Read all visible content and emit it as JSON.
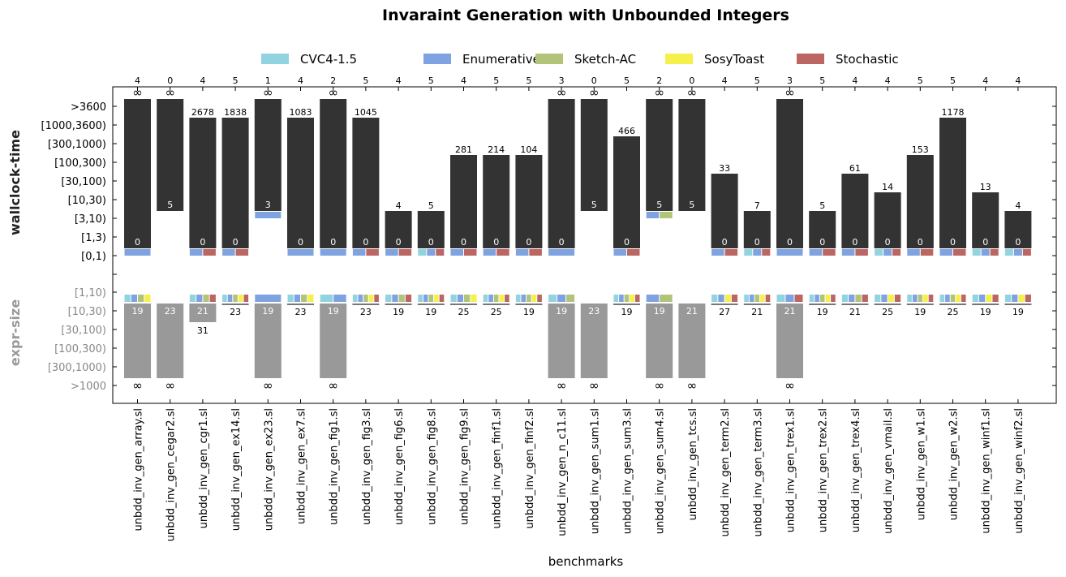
{
  "chart_data": {
    "type": "bar",
    "title": "Invaraint Generation with Unbounded Integers",
    "xlabel": "benchmarks",
    "ylabel_top": "wallclock-time",
    "ylabel_bottom": "expr-size",
    "time_ticks": [
      ">3600",
      "[1000,3600)",
      "[300,1000)",
      "[100,300)",
      "[30,100)",
      "[10,30)",
      "[3,10)",
      "[1,3)",
      "[0,1)"
    ],
    "size_ticks": [
      "[1,10)",
      "[10,30)",
      "[30,100)",
      "[100,300)",
      "[300,1000)",
      ">1000"
    ],
    "legend": [
      {
        "name": "CVC4-1.5",
        "color": "#92d3e0"
      },
      {
        "name": "Enumerative",
        "color": "#7ea3e0"
      },
      {
        "name": "Sketch-AC",
        "color": "#b2c479"
      },
      {
        "name": "SosyToast",
        "color": "#f5f04c"
      },
      {
        "name": "Stochastic",
        "color": "#bb6662"
      }
    ],
    "colors": {
      "time_bar": "#333333",
      "size_bar": "#999999"
    },
    "benchmarks": [
      {
        "name": "unbdd_inv_gen_array.sl",
        "solved": "4",
        "max_level": 8,
        "max_label": "∞",
        "min_level": 0,
        "min_label": "0",
        "time_solvers": [
          "Enumerative"
        ],
        "size_solvers": [
          "CVC4-1.5",
          "Enumerative",
          "Sketch-AC",
          "SosyToast"
        ],
        "size_min_level": 1,
        "size_min_label": "19",
        "size_max_level": 5,
        "size_max_label": "∞"
      },
      {
        "name": "unbdd_inv_gen_cegar2.sl",
        "solved": "0",
        "max_level": 8,
        "max_label": "∞",
        "min_level": 2,
        "min_label": "5",
        "time_solvers": [],
        "size_solvers": [],
        "size_min_level": 1,
        "size_min_label": "23",
        "size_max_level": 5,
        "size_max_label": "∞"
      },
      {
        "name": "unbdd_inv_gen_cgr1.sl",
        "solved": "4",
        "max_level": 7,
        "max_label": "2678",
        "min_level": 0,
        "min_label": "0",
        "time_solvers": [
          "Enumerative",
          "Stochastic"
        ],
        "size_solvers": [
          "CVC4-1.5",
          "Enumerative",
          "Sketch-AC",
          "Stochastic"
        ],
        "size_min_level": 1,
        "size_min_label": "21",
        "size_max_level": 2,
        "size_max_label": "31"
      },
      {
        "name": "unbdd_inv_gen_ex14.sl",
        "solved": "5",
        "max_level": 7,
        "max_label": "1838",
        "min_level": 0,
        "min_label": "0",
        "time_solvers": [
          "Enumerative",
          "Stochastic"
        ],
        "size_solvers": [
          "CVC4-1.5",
          "Enumerative",
          "Sketch-AC",
          "SosyToast",
          "Stochastic"
        ],
        "size_min_level": 1,
        "size_min_label": "",
        "size_max_level": 1,
        "size_max_label": "23"
      },
      {
        "name": "unbdd_inv_gen_ex23.sl",
        "solved": "1",
        "max_level": 8,
        "max_label": "∞",
        "min_level": 2,
        "min_label": "3",
        "time_solvers": [
          "Enumerative"
        ],
        "size_solvers": [
          "Enumerative"
        ],
        "size_min_level": 1,
        "size_min_label": "19",
        "size_max_level": 5,
        "size_max_label": "∞"
      },
      {
        "name": "unbdd_inv_gen_ex7.sl",
        "solved": "4",
        "max_level": 7,
        "max_label": "1083",
        "min_level": 0,
        "min_label": "0",
        "time_solvers": [
          "Enumerative"
        ],
        "size_solvers": [
          "CVC4-1.5",
          "Enumerative",
          "Sketch-AC",
          "SosyToast"
        ],
        "size_min_level": 1,
        "size_min_label": "",
        "size_max_level": 1,
        "size_max_label": "23"
      },
      {
        "name": "unbdd_inv_gen_fig1.sl",
        "solved": "2",
        "max_level": 8,
        "max_label": "∞",
        "min_level": 0,
        "min_label": "0",
        "time_solvers": [
          "Enumerative"
        ],
        "size_solvers": [
          "CVC4-1.5",
          "Enumerative"
        ],
        "size_min_level": 1,
        "size_min_label": "19",
        "size_max_level": 5,
        "size_max_label": "∞"
      },
      {
        "name": "unbdd_inv_gen_fig3.sl",
        "solved": "5",
        "max_level": 7,
        "max_label": "1045",
        "min_level": 0,
        "min_label": "0",
        "time_solvers": [
          "Enumerative",
          "Stochastic"
        ],
        "size_solvers": [
          "CVC4-1.5",
          "Enumerative",
          "Sketch-AC",
          "SosyToast",
          "Stochastic"
        ],
        "size_min_level": 1,
        "size_min_label": "",
        "size_max_level": 1,
        "size_max_label": "23"
      },
      {
        "name": "unbdd_inv_gen_fig6.sl",
        "solved": "4",
        "max_level": 2,
        "max_label": "4",
        "min_level": 0,
        "min_label": "0",
        "time_solvers": [
          "Enumerative",
          "Stochastic"
        ],
        "size_solvers": [
          "CVC4-1.5",
          "Enumerative",
          "Sketch-AC",
          "Stochastic"
        ],
        "size_min_level": 1,
        "size_min_label": "",
        "size_max_level": 1,
        "size_max_label": "19"
      },
      {
        "name": "unbdd_inv_gen_fig8.sl",
        "solved": "5",
        "max_level": 2,
        "max_label": "5",
        "min_level": 0,
        "min_label": "0",
        "time_solvers": [
          "CVC4-1.5",
          "Enumerative",
          "Stochastic"
        ],
        "size_solvers": [
          "CVC4-1.5",
          "Enumerative",
          "Sketch-AC",
          "SosyToast",
          "Stochastic"
        ],
        "size_min_level": 1,
        "size_min_label": "",
        "size_max_level": 1,
        "size_max_label": "19"
      },
      {
        "name": "unbdd_inv_gen_fig9.sl",
        "solved": "4",
        "max_level": 5,
        "max_label": "281",
        "min_level": 0,
        "min_label": "0",
        "time_solvers": [
          "Enumerative",
          "Stochastic"
        ],
        "size_solvers": [
          "CVC4-1.5",
          "Enumerative",
          "Sketch-AC",
          "SosyToast"
        ],
        "size_min_level": 1,
        "size_min_label": "",
        "size_max_level": 1,
        "size_max_label": "25"
      },
      {
        "name": "unbdd_inv_gen_finf1.sl",
        "solved": "5",
        "max_level": 5,
        "max_label": "214",
        "min_level": 0,
        "min_label": "0",
        "time_solvers": [
          "Enumerative",
          "Stochastic"
        ],
        "size_solvers": [
          "CVC4-1.5",
          "Enumerative",
          "Sketch-AC",
          "SosyToast",
          "Stochastic"
        ],
        "size_min_level": 1,
        "size_min_label": "",
        "size_max_level": 1,
        "size_max_label": "25"
      },
      {
        "name": "unbdd_inv_gen_finf2.sl",
        "solved": "5",
        "max_level": 5,
        "max_label": "104",
        "min_level": 0,
        "min_label": "0",
        "time_solvers": [
          "Enumerative",
          "Stochastic"
        ],
        "size_solvers": [
          "CVC4-1.5",
          "Enumerative",
          "Sketch-AC",
          "SosyToast",
          "Stochastic"
        ],
        "size_min_level": 1,
        "size_min_label": "",
        "size_max_level": 1,
        "size_max_label": "19"
      },
      {
        "name": "unbdd_inv_gen_n_c11.sl",
        "solved": "3",
        "max_level": 8,
        "max_label": "∞",
        "min_level": 0,
        "min_label": "0",
        "time_solvers": [
          "Enumerative"
        ],
        "size_solvers": [
          "CVC4-1.5",
          "Enumerative",
          "Sketch-AC"
        ],
        "size_min_level": 1,
        "size_min_label": "19",
        "size_max_level": 5,
        "size_max_label": "∞"
      },
      {
        "name": "unbdd_inv_gen_sum1.sl",
        "solved": "0",
        "max_level": 8,
        "max_label": "∞",
        "min_level": 2,
        "min_label": "5",
        "time_solvers": [],
        "size_solvers": [],
        "size_min_level": 1,
        "size_min_label": "23",
        "size_max_level": 5,
        "size_max_label": "∞"
      },
      {
        "name": "unbdd_inv_gen_sum3.sl",
        "solved": "5",
        "max_level": 6,
        "max_label": "466",
        "min_level": 0,
        "min_label": "0",
        "time_solvers": [
          "Enumerative",
          "Stochastic"
        ],
        "size_solvers": [
          "CVC4-1.5",
          "Enumerative",
          "Sketch-AC",
          "SosyToast",
          "Stochastic"
        ],
        "size_min_level": 1,
        "size_min_label": "",
        "size_max_level": 1,
        "size_max_label": "19"
      },
      {
        "name": "unbdd_inv_gen_sum4.sl",
        "solved": "2",
        "max_level": 8,
        "max_label": "∞",
        "min_level": 2,
        "min_label": "5",
        "time_solvers": [
          "Enumerative",
          "Sketch-AC"
        ],
        "size_solvers": [
          "Enumerative",
          "Sketch-AC"
        ],
        "size_min_level": 1,
        "size_min_label": "19",
        "size_max_level": 5,
        "size_max_label": "∞"
      },
      {
        "name": "unbdd_inv_gen_tcs.sl",
        "solved": "0",
        "max_level": 8,
        "max_label": "∞",
        "min_level": 2,
        "min_label": "5",
        "time_solvers": [],
        "size_solvers": [],
        "size_min_level": 1,
        "size_min_label": "21",
        "size_max_level": 5,
        "size_max_label": "∞"
      },
      {
        "name": "unbdd_inv_gen_term2.sl",
        "solved": "4",
        "max_level": 4,
        "max_label": "33",
        "min_level": 0,
        "min_label": "0",
        "time_solvers": [
          "Enumerative",
          "Stochastic"
        ],
        "size_solvers": [
          "CVC4-1.5",
          "Enumerative",
          "SosyToast",
          "Stochastic"
        ],
        "size_min_level": 1,
        "size_min_label": "",
        "size_max_level": 1,
        "size_max_label": "27"
      },
      {
        "name": "unbdd_inv_gen_term3.sl",
        "solved": "5",
        "max_level": 2,
        "max_label": "7",
        "min_level": 0,
        "min_label": "0",
        "time_solvers": [
          "CVC4-1.5",
          "Enumerative",
          "Stochastic"
        ],
        "size_solvers": [
          "CVC4-1.5",
          "Enumerative",
          "Sketch-AC",
          "SosyToast",
          "Stochastic"
        ],
        "size_min_level": 1,
        "size_min_label": "",
        "size_max_level": 1,
        "size_max_label": "21"
      },
      {
        "name": "unbdd_inv_gen_trex1.sl",
        "solved": "3",
        "max_level": 8,
        "max_label": "∞",
        "min_level": 0,
        "min_label": "0",
        "time_solvers": [
          "Enumerative"
        ],
        "size_solvers": [
          "CVC4-1.5",
          "Enumerative",
          "Stochastic"
        ],
        "size_min_level": 1,
        "size_min_label": "21",
        "size_max_level": 5,
        "size_max_label": "∞"
      },
      {
        "name": "unbdd_inv_gen_trex2.sl",
        "solved": "5",
        "max_level": 2,
        "max_label": "5",
        "min_level": 0,
        "min_label": "0",
        "time_solvers": [
          "Enumerative",
          "Stochastic"
        ],
        "size_solvers": [
          "CVC4-1.5",
          "Enumerative",
          "Sketch-AC",
          "SosyToast",
          "Stochastic"
        ],
        "size_min_level": 1,
        "size_min_label": "",
        "size_max_level": 1,
        "size_max_label": "19"
      },
      {
        "name": "unbdd_inv_gen_trex4.sl",
        "solved": "4",
        "max_level": 4,
        "max_label": "61",
        "min_level": 0,
        "min_label": "0",
        "time_solvers": [
          "Enumerative",
          "Stochastic"
        ],
        "size_solvers": [
          "CVC4-1.5",
          "Enumerative",
          "Sketch-AC",
          "Stochastic"
        ],
        "size_min_level": 1,
        "size_min_label": "",
        "size_max_level": 1,
        "size_max_label": "21"
      },
      {
        "name": "unbdd_inv_gen_vmail.sl",
        "solved": "4",
        "max_level": 3,
        "max_label": "14",
        "min_level": 0,
        "min_label": "0",
        "time_solvers": [
          "CVC4-1.5",
          "Enumerative",
          "Stochastic"
        ],
        "size_solvers": [
          "CVC4-1.5",
          "Enumerative",
          "SosyToast",
          "Stochastic"
        ],
        "size_min_level": 1,
        "size_min_label": "",
        "size_max_level": 1,
        "size_max_label": "25"
      },
      {
        "name": "unbdd_inv_gen_w1.sl",
        "solved": "5",
        "max_level": 5,
        "max_label": "153",
        "min_level": 0,
        "min_label": "0",
        "time_solvers": [
          "Enumerative",
          "Stochastic"
        ],
        "size_solvers": [
          "CVC4-1.5",
          "Enumerative",
          "Sketch-AC",
          "SosyToast",
          "Stochastic"
        ],
        "size_min_level": 1,
        "size_min_label": "",
        "size_max_level": 1,
        "size_max_label": "19"
      },
      {
        "name": "unbdd_inv_gen_w2.sl",
        "solved": "5",
        "max_level": 7,
        "max_label": "1178",
        "min_level": 0,
        "min_label": "0",
        "time_solvers": [
          "Enumerative",
          "Stochastic"
        ],
        "size_solvers": [
          "CVC4-1.5",
          "Enumerative",
          "Sketch-AC",
          "SosyToast",
          "Stochastic"
        ],
        "size_min_level": 1,
        "size_min_label": "",
        "size_max_level": 1,
        "size_max_label": "25"
      },
      {
        "name": "unbdd_inv_gen_winf1.sl",
        "solved": "4",
        "max_level": 3,
        "max_label": "13",
        "min_level": 0,
        "min_label": "0",
        "time_solvers": [
          "CVC4-1.5",
          "Enumerative",
          "Stochastic"
        ],
        "size_solvers": [
          "CVC4-1.5",
          "Enumerative",
          "SosyToast",
          "Stochastic"
        ],
        "size_min_level": 1,
        "size_min_label": "",
        "size_max_level": 1,
        "size_max_label": "19"
      },
      {
        "name": "unbdd_inv_gen_winf2.sl",
        "solved": "4",
        "max_level": 2,
        "max_label": "4",
        "min_level": 0,
        "min_label": "0",
        "time_solvers": [
          "CVC4-1.5",
          "Enumerative",
          "Stochastic"
        ],
        "size_solvers": [
          "CVC4-1.5",
          "Enumerative",
          "SosyToast",
          "Stochastic"
        ],
        "size_min_level": 1,
        "size_min_label": "",
        "size_max_level": 1,
        "size_max_label": "19"
      }
    ]
  }
}
